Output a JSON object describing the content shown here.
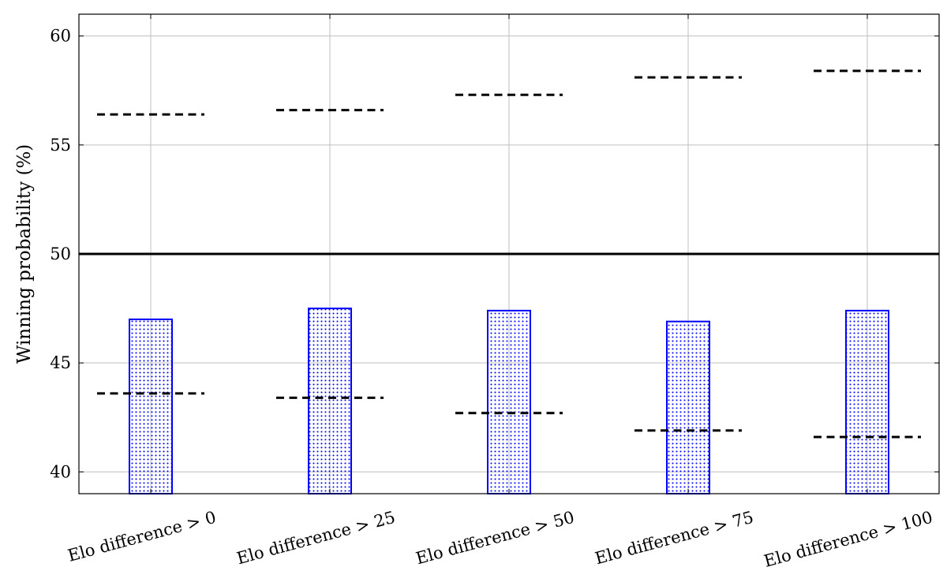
{
  "chart_data": {
    "type": "bar",
    "categories": [
      "Elo difference > 0",
      "Elo difference > 25",
      "Elo difference > 50",
      "Elo difference > 75",
      "Elo difference > 100"
    ],
    "values": [
      47.0,
      47.5,
      47.4,
      46.9,
      47.4
    ],
    "upper_reference": [
      56.4,
      56.6,
      57.3,
      58.1,
      58.4
    ],
    "lower_reference": [
      43.6,
      43.4,
      42.7,
      41.9,
      41.6
    ],
    "baseline": 50,
    "ylabel": "Winning probability (%)",
    "xlabel": "",
    "ylim": [
      39,
      61
    ],
    "yticks": [
      40,
      45,
      50,
      55,
      60
    ],
    "grid": true,
    "colors": {
      "bar_stroke": "#0000ff",
      "bar_fill_pattern": "#0000ff",
      "reference_line": "#000000",
      "grid": "#bfbfbf"
    }
  }
}
